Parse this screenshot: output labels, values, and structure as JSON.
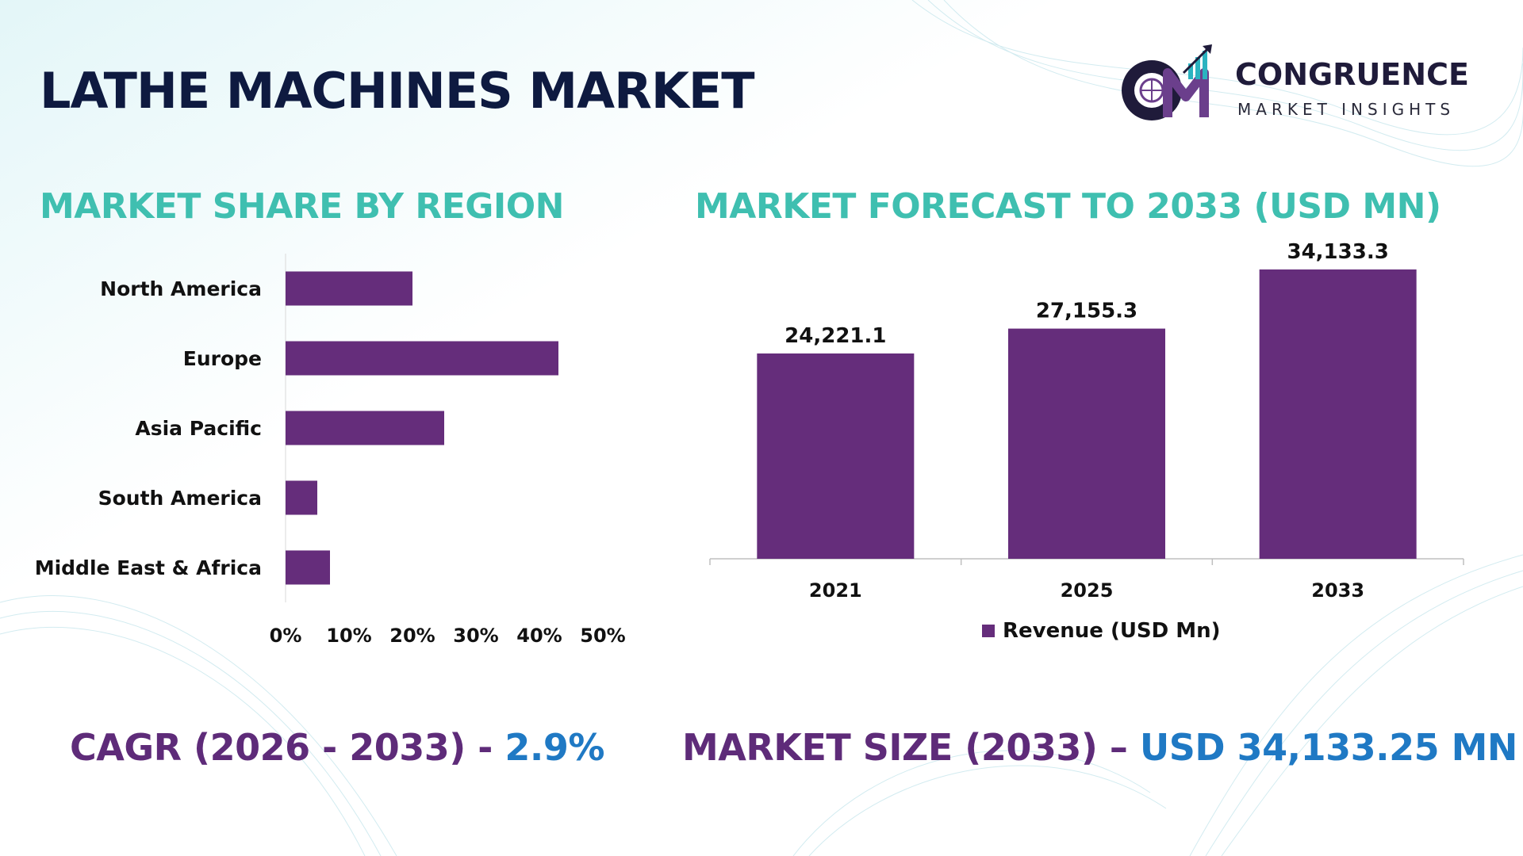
{
  "title": "LATHE MACHINES MARKET",
  "logo": {
    "name": "CONGRUENCE",
    "tagline": "MARKET INSIGHTS"
  },
  "colors": {
    "bar": "#652d7b",
    "title": "#0e1a40",
    "section": "#3fbfb0",
    "footer_key": "#5e2b79",
    "footer_value": "#1f79c4"
  },
  "left_section_title": "MARKET SHARE BY REGION",
  "right_section_title": "MARKET FORECAST TO 2033 (USD MN)",
  "chart_data": [
    {
      "type": "bar",
      "orientation": "horizontal",
      "categories": [
        "North America",
        "Europe",
        "Asia Pacific",
        "South America",
        "Middle East & Africa"
      ],
      "values": [
        20,
        43,
        25,
        5,
        7
      ],
      "xlim": [
        0,
        50
      ],
      "xticks": [
        "0%",
        "10%",
        "20%",
        "30%",
        "40%",
        "50%"
      ],
      "grid": false
    },
    {
      "type": "bar",
      "categories": [
        "2021",
        "2025",
        "2033"
      ],
      "series": [
        {
          "name": "Revenue (USD Mn)",
          "values": [
            24221.1,
            27155.3,
            34133.3
          ]
        }
      ],
      "data_labels": [
        "24,221.1",
        "27,155.3",
        "34,133.3"
      ],
      "ylim": [
        0,
        36000
      ],
      "legend": "bottom",
      "grid": false
    }
  ],
  "footer": {
    "cagr_label": "CAGR (2026 - 2033) -",
    "cagr_value": "2.9%",
    "size_label": "MARKET SIZE (2033) –",
    "size_value": "USD 34,133.25 MN"
  }
}
